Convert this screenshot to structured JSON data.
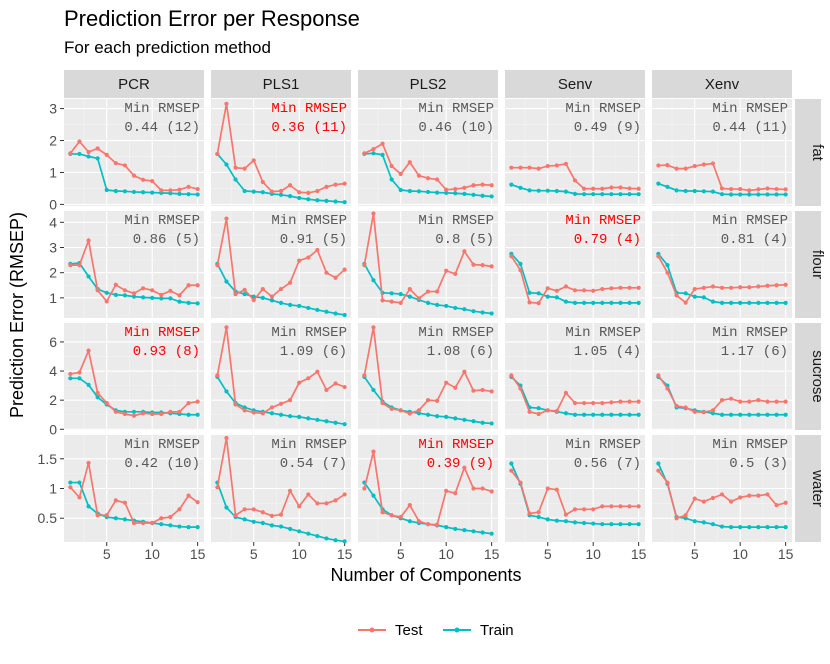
{
  "title": "Prediction Error per Response",
  "subtitle": "For each prediction method",
  "chart_data": {
    "type": "line",
    "xlabel": "Number of Components",
    "ylabel": "Prediction Error (RMSEP)",
    "x": [
      1,
      2,
      3,
      4,
      5,
      6,
      7,
      8,
      9,
      10,
      11,
      12,
      13,
      14,
      15
    ],
    "x_breaks": [
      5,
      10,
      15
    ],
    "methods": [
      "PCR",
      "PLS1",
      "PLS2",
      "Senv",
      "Xenv"
    ],
    "responses": [
      "fat",
      "flour",
      "sucrose",
      "water"
    ],
    "series_names": [
      "Test",
      "Train"
    ],
    "series_colors": {
      "Test": "#F8766D",
      "Train": "#00BFC4"
    },
    "annotation_label": "Min RMSEP",
    "highlight_color": "#FF0000",
    "annotation_color": "#595959",
    "rows": [
      {
        "response": "fat",
        "ylim": [
          -0.05,
          3.3
        ],
        "y_breaks": [
          0,
          1,
          2,
          3
        ],
        "panels": [
          {
            "method": "PCR",
            "min_text": "0.44 (12)",
            "highlight": false,
            "test": [
              1.6,
              1.97,
              1.64,
              1.75,
              1.55,
              1.29,
              1.22,
              0.9,
              0.77,
              0.73,
              0.44,
              0.44,
              0.46,
              0.55,
              0.48
            ],
            "train": [
              1.58,
              1.58,
              1.5,
              1.44,
              0.45,
              0.42,
              0.41,
              0.39,
              0.38,
              0.37,
              0.36,
              0.35,
              0.33,
              0.32,
              0.31
            ]
          },
          {
            "method": "PLS1",
            "min_text": "0.36 (11)",
            "highlight": true,
            "test": [
              1.58,
              3.15,
              1.15,
              1.12,
              1.38,
              0.7,
              0.4,
              0.42,
              0.6,
              0.38,
              0.36,
              0.42,
              0.55,
              0.62,
              0.65
            ],
            "train": [
              1.58,
              1.25,
              0.78,
              0.42,
              0.4,
              0.38,
              0.33,
              0.3,
              0.26,
              0.2,
              0.16,
              0.13,
              0.11,
              0.09,
              0.07
            ]
          },
          {
            "method": "PLS2",
            "min_text": "0.46 (10)",
            "highlight": false,
            "test": [
              1.6,
              1.73,
              1.9,
              1.2,
              0.95,
              1.32,
              0.9,
              0.82,
              0.78,
              0.46,
              0.48,
              0.52,
              0.6,
              0.62,
              0.6
            ],
            "train": [
              1.58,
              1.6,
              1.55,
              0.78,
              0.45,
              0.42,
              0.41,
              0.39,
              0.37,
              0.36,
              0.35,
              0.33,
              0.3,
              0.27,
              0.25
            ]
          },
          {
            "method": "Senv",
            "min_text": "0.49 (9)",
            "highlight": false,
            "test": [
              1.15,
              1.15,
              1.15,
              1.12,
              1.2,
              1.22,
              1.27,
              0.75,
              0.49,
              0.49,
              0.49,
              0.53,
              0.53,
              0.5,
              0.49
            ],
            "train": [
              0.62,
              0.52,
              0.44,
              0.43,
              0.43,
              0.42,
              0.4,
              0.33,
              0.32,
              0.32,
              0.32,
              0.32,
              0.32,
              0.32,
              0.32
            ]
          },
          {
            "method": "Xenv",
            "min_text": "0.44 (11)",
            "highlight": false,
            "test": [
              1.22,
              1.23,
              1.12,
              1.12,
              1.2,
              1.25,
              1.28,
              0.5,
              0.48,
              0.48,
              0.44,
              0.47,
              0.5,
              0.48,
              0.47
            ],
            "train": [
              0.65,
              0.55,
              0.44,
              0.42,
              0.42,
              0.41,
              0.4,
              0.32,
              0.31,
              0.31,
              0.31,
              0.31,
              0.31,
              0.31,
              0.31
            ]
          }
        ]
      },
      {
        "response": "flour",
        "ylim": [
          0.2,
          4.45
        ],
        "y_breaks": [
          1,
          2,
          3,
          4
        ],
        "panels": [
          {
            "method": "PCR",
            "min_text": "0.86 (5)",
            "highlight": false,
            "test": [
              2.3,
              2.3,
              3.28,
              1.3,
              0.86,
              1.52,
              1.3,
              1.18,
              1.38,
              1.3,
              1.12,
              1.28,
              1.1,
              1.5,
              1.5
            ],
            "train": [
              2.35,
              2.38,
              1.85,
              1.35,
              1.2,
              1.12,
              1.1,
              1.05,
              1.02,
              1.0,
              0.98,
              0.98,
              0.85,
              0.8,
              0.78
            ]
          },
          {
            "method": "PLS1",
            "min_text": "0.91 (5)",
            "highlight": false,
            "test": [
              2.3,
              4.15,
              1.15,
              1.32,
              0.91,
              1.35,
              1.05,
              1.35,
              1.6,
              2.48,
              2.6,
              2.9,
              2.0,
              1.8,
              2.12
            ],
            "train": [
              2.35,
              1.65,
              1.25,
              1.15,
              1.05,
              1.0,
              0.9,
              0.8,
              0.72,
              0.68,
              0.6,
              0.52,
              0.45,
              0.38,
              0.32
            ]
          },
          {
            "method": "PLS2",
            "min_text": "0.8 (5)",
            "highlight": false,
            "test": [
              2.3,
              4.35,
              0.9,
              0.85,
              0.8,
              1.35,
              0.98,
              1.25,
              1.25,
              2.08,
              1.95,
              2.85,
              2.32,
              2.3,
              2.25
            ],
            "train": [
              2.35,
              1.7,
              1.2,
              1.18,
              1.15,
              1.05,
              0.92,
              0.8,
              0.72,
              0.68,
              0.6,
              0.55,
              0.47,
              0.42,
              0.38
            ]
          },
          {
            "method": "Senv",
            "min_text": "0.79 (4)",
            "highlight": true,
            "test": [
              2.65,
              2.1,
              0.82,
              0.79,
              1.38,
              1.28,
              1.45,
              1.3,
              1.3,
              1.28,
              1.35,
              1.38,
              1.4,
              1.4,
              1.4
            ],
            "train": [
              2.75,
              2.35,
              1.2,
              1.18,
              1.05,
              1.02,
              0.85,
              0.8,
              0.8,
              0.8,
              0.8,
              0.8,
              0.8,
              0.8,
              0.8
            ]
          },
          {
            "method": "Xenv",
            "min_text": "0.81 (4)",
            "highlight": false,
            "test": [
              2.65,
              2.0,
              1.1,
              0.81,
              1.35,
              1.4,
              1.45,
              1.4,
              1.4,
              1.42,
              1.42,
              1.45,
              1.48,
              1.5,
              1.52
            ],
            "train": [
              2.75,
              2.3,
              1.2,
              1.18,
              1.05,
              1.02,
              0.85,
              0.8,
              0.8,
              0.8,
              0.8,
              0.8,
              0.8,
              0.8,
              0.8
            ]
          }
        ]
      },
      {
        "response": "sucrose",
        "ylim": [
          -0.05,
          7.3
        ],
        "y_breaks": [
          0,
          2,
          4,
          6
        ],
        "panels": [
          {
            "method": "PCR",
            "min_text": "0.93 (8)",
            "highlight": true,
            "test": [
              3.8,
              3.9,
              5.4,
              2.5,
              1.8,
              1.2,
              1.05,
              0.93,
              1.1,
              1.05,
              1.05,
              1.2,
              1.2,
              1.8,
              1.9
            ],
            "train": [
              3.5,
              3.5,
              3.05,
              2.2,
              1.7,
              1.3,
              1.2,
              1.2,
              1.2,
              1.15,
              1.15,
              1.1,
              1.05,
              1.0,
              1.0
            ]
          },
          {
            "method": "PLS1",
            "min_text": "1.09 (6)",
            "highlight": false,
            "test": [
              3.7,
              7.0,
              1.7,
              1.3,
              1.15,
              1.09,
              1.5,
              1.75,
              2.0,
              3.2,
              3.5,
              3.95,
              2.7,
              3.15,
              2.9
            ],
            "train": [
              3.6,
              2.6,
              1.8,
              1.5,
              1.3,
              1.2,
              1.1,
              1.0,
              0.9,
              0.85,
              0.75,
              0.65,
              0.55,
              0.45,
              0.35
            ]
          },
          {
            "method": "PLS2",
            "min_text": "1.08 (6)",
            "highlight": false,
            "test": [
              3.7,
              7.0,
              1.8,
              1.4,
              1.3,
              1.08,
              1.3,
              2.0,
              1.95,
              3.2,
              2.85,
              3.95,
              2.65,
              2.7,
              2.6
            ],
            "train": [
              3.6,
              2.7,
              1.9,
              1.5,
              1.3,
              1.2,
              1.1,
              1.0,
              0.9,
              0.85,
              0.75,
              0.65,
              0.55,
              0.45,
              0.4
            ]
          },
          {
            "method": "Senv",
            "min_text": "1.05 (4)",
            "highlight": false,
            "test": [
              3.7,
              2.8,
              1.2,
              1.05,
              1.3,
              1.25,
              2.5,
              1.8,
              1.8,
              1.8,
              1.8,
              1.85,
              1.9,
              1.9,
              1.9
            ],
            "train": [
              3.6,
              3.0,
              1.5,
              1.45,
              1.3,
              1.2,
              1.1,
              1.0,
              1.0,
              1.0,
              1.0,
              1.0,
              1.0,
              1.0,
              1.0
            ]
          },
          {
            "method": "Xenv",
            "min_text": "1.17 (6)",
            "highlight": false,
            "test": [
              3.7,
              2.8,
              1.6,
              1.5,
              1.2,
              1.17,
              1.3,
              2.0,
              2.1,
              1.9,
              1.9,
              2.0,
              1.9,
              1.9,
              1.9
            ],
            "train": [
              3.6,
              3.0,
              1.5,
              1.45,
              1.3,
              1.2,
              1.1,
              1.0,
              1.0,
              1.0,
              1.0,
              1.0,
              1.0,
              1.0,
              1.0
            ]
          }
        ]
      },
      {
        "response": "water",
        "ylim": [
          0.1,
          1.9
        ],
        "y_breaks": [
          0.5,
          1.0,
          1.5
        ],
        "panels": [
          {
            "method": "PCR",
            "min_text": "0.42 (10)",
            "highlight": false,
            "test": [
              1.02,
              0.85,
              1.43,
              0.55,
              0.55,
              0.8,
              0.76,
              0.42,
              0.42,
              0.42,
              0.5,
              0.52,
              0.65,
              0.88,
              0.77
            ],
            "train": [
              1.1,
              1.1,
              0.7,
              0.58,
              0.52,
              0.5,
              0.48,
              0.46,
              0.44,
              0.42,
              0.4,
              0.38,
              0.36,
              0.35,
              0.35
            ]
          },
          {
            "method": "PLS1",
            "min_text": "0.54 (7)",
            "highlight": false,
            "test": [
              1.02,
              1.85,
              0.55,
              0.65,
              0.65,
              0.6,
              0.54,
              0.56,
              0.96,
              0.7,
              0.9,
              0.75,
              0.75,
              0.8,
              0.9
            ],
            "train": [
              1.1,
              0.68,
              0.52,
              0.48,
              0.44,
              0.42,
              0.38,
              0.36,
              0.32,
              0.28,
              0.24,
              0.2,
              0.16,
              0.13,
              0.11
            ]
          },
          {
            "method": "PLS2",
            "min_text": "0.39 (9)",
            "highlight": true,
            "test": [
              1.0,
              1.62,
              0.6,
              0.55,
              0.52,
              0.72,
              0.45,
              0.4,
              0.39,
              0.96,
              0.92,
              1.35,
              1.0,
              1.0,
              0.95
            ],
            "train": [
              1.1,
              0.88,
              0.65,
              0.55,
              0.5,
              0.45,
              0.42,
              0.4,
              0.38,
              0.35,
              0.32,
              0.3,
              0.28,
              0.26,
              0.24
            ]
          },
          {
            "method": "Senv",
            "min_text": "0.56 (7)",
            "highlight": false,
            "test": [
              1.3,
              1.1,
              0.58,
              0.6,
              1.0,
              0.98,
              0.56,
              0.65,
              0.65,
              0.65,
              0.7,
              0.7,
              0.7,
              0.7,
              0.7
            ],
            "train": [
              1.42,
              1.08,
              0.55,
              0.52,
              0.48,
              0.46,
              0.45,
              0.43,
              0.42,
              0.41,
              0.4,
              0.4,
              0.4,
              0.4,
              0.4
            ]
          },
          {
            "method": "Xenv",
            "min_text": "0.5 (3)",
            "highlight": false,
            "test": [
              1.3,
              1.1,
              0.5,
              0.55,
              0.83,
              0.78,
              0.84,
              0.9,
              0.78,
              0.85,
              0.88,
              0.88,
              0.9,
              0.72,
              0.76
            ],
            "train": [
              1.42,
              1.08,
              0.52,
              0.5,
              0.45,
              0.43,
              0.4,
              0.36,
              0.35,
              0.35,
              0.35,
              0.35,
              0.35,
              0.35,
              0.35
            ]
          }
        ]
      }
    ]
  }
}
